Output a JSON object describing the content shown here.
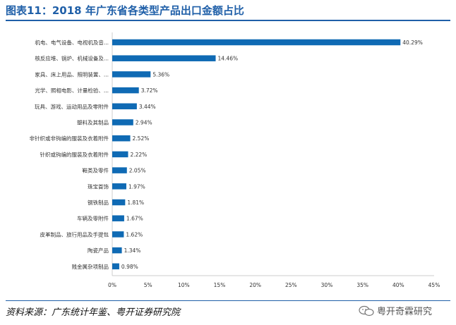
{
  "header": {
    "title": "图表11：2018 年广东省各类型产品出口金额占比"
  },
  "footer": {
    "source": "资料来源：广东统计年鉴、粤开证券研究院"
  },
  "watermark": {
    "text": "粤开奇霖研究",
    "icon": "wechat-icon"
  },
  "colors": {
    "bar": "#0f6ab4",
    "title": "#1f5fa8",
    "axis": "#cccccc"
  },
  "chart_data": {
    "type": "bar",
    "orientation": "horizontal",
    "title": "",
    "xlabel": "",
    "ylabel": "",
    "xlim": [
      0,
      45
    ],
    "xticks": [
      "0%",
      "5%",
      "10%",
      "15%",
      "20%",
      "25%",
      "30%",
      "35%",
      "40%",
      "45%"
    ],
    "grid": false,
    "categories": [
      "机电、电气设备、电视机及音...",
      "核反应堆、锅炉、机械设备及...",
      "家具、床上用品、照明装置、...",
      "光学、照相电影、计量检验、...",
      "玩具、游戏、运动用品及零附件",
      "塑料及其制品",
      "非针织或非钩编的服装及衣着附件",
      "针织或钩编的服装及衣着附件",
      "鞋类及零件",
      "珠宝首饰",
      "钢铁制品",
      "车辆及零附件",
      "皮革制品、旅行用品及手提包",
      "陶瓷产品",
      "贱金属杂项制品"
    ],
    "values": [
      40.29,
      14.46,
      5.36,
      3.72,
      3.44,
      2.94,
      2.52,
      2.22,
      2.05,
      1.97,
      1.81,
      1.67,
      1.62,
      1.34,
      0.98
    ],
    "labels": [
      "40.29%",
      "14.46%",
      "5.36%",
      "3.72%",
      "3.44%",
      "2.94%",
      "2.52%",
      "2.22%",
      "2.05%",
      "1.97%",
      "1.81%",
      "1.67%",
      "1.62%",
      "1.34%",
      "0.98%"
    ]
  }
}
